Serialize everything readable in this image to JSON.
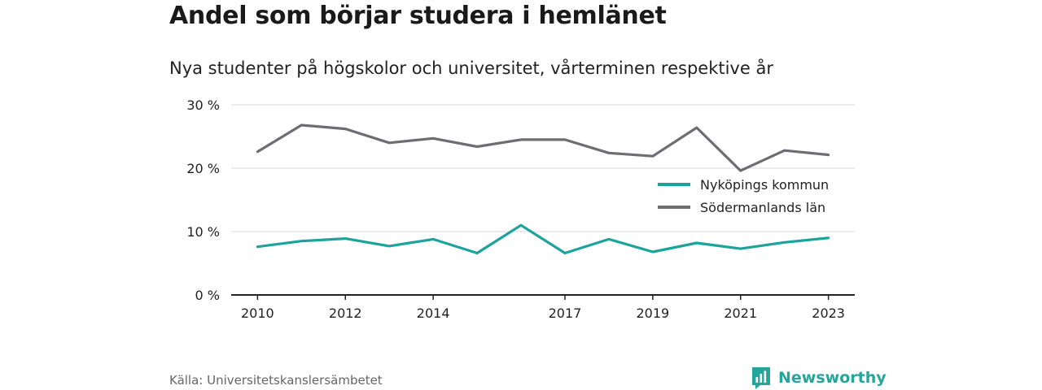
{
  "title": "Andel som börjar studera i hemlänet",
  "subtitle": "Nya studenter på högskolor och universitet, vårterminen respektive år",
  "source": "Källa: Universitetskanslersämbetet",
  "brand": "Newsworthy",
  "colors": {
    "teal": "#1ba39c",
    "gray": "#6d6d72",
    "grid": "#d9d9d9",
    "axis": "#222222",
    "brand": "#26a69a"
  },
  "chart_data": {
    "type": "line",
    "x": [
      2010,
      2011,
      2012,
      2013,
      2014,
      2015,
      2016,
      2017,
      2018,
      2019,
      2020,
      2021,
      2022,
      2023
    ],
    "x_tick_labels": [
      "2010",
      "2012",
      "2014",
      "2017",
      "2019",
      "2021",
      "2023"
    ],
    "x_tick_values": [
      2010,
      2012,
      2014,
      2017,
      2019,
      2021,
      2023
    ],
    "y_ticks": [
      0,
      10,
      20,
      30
    ],
    "y_tick_labels": [
      "0 %",
      "10 %",
      "20 %",
      "30 %"
    ],
    "ylim": [
      0,
      30
    ],
    "xlim": [
      2009.4,
      2023.6
    ],
    "grid": true,
    "legend_position": "right",
    "series": [
      {
        "name": "Nyköpings kommun",
        "color": "#1ba39c",
        "values": [
          7.6,
          8.5,
          8.9,
          7.7,
          8.8,
          6.6,
          11.0,
          6.6,
          8.8,
          6.8,
          8.2,
          7.3,
          8.3,
          9.0
        ]
      },
      {
        "name": "Södermanlands län",
        "color": "#6d6d72",
        "values": [
          22.6,
          26.8,
          26.2,
          24.0,
          24.7,
          23.4,
          24.5,
          24.5,
          22.4,
          21.9,
          26.4,
          19.6,
          22.8,
          22.1
        ]
      }
    ]
  }
}
